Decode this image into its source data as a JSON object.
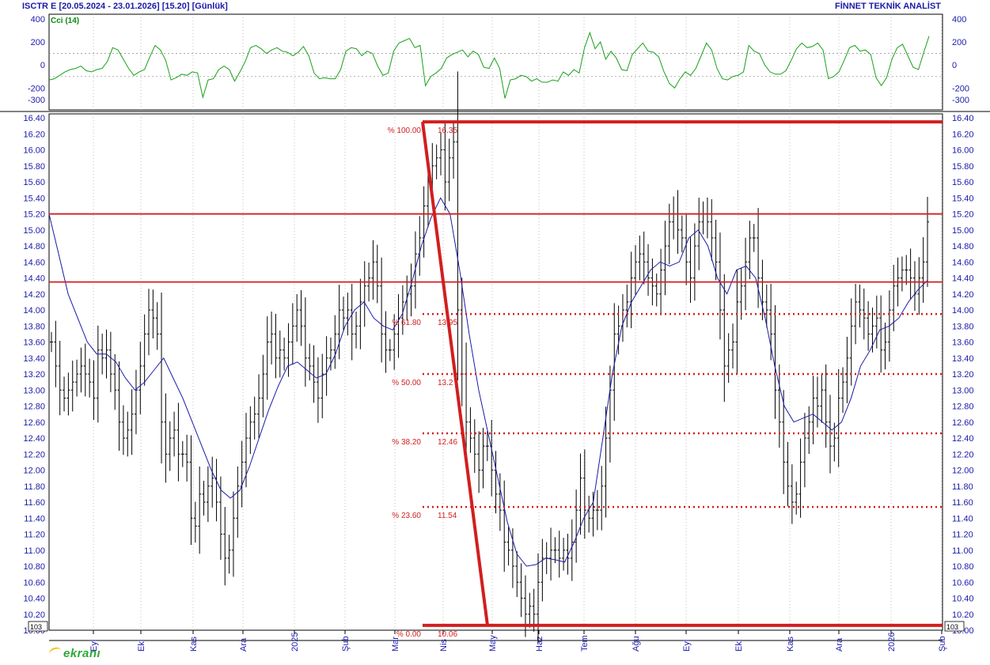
{
  "header": {
    "left_title": "ISCTR E  [20.05.2024 - 23.01.2026]  [15.20]  [Günlük]",
    "right_title": "FİNNET TEKNİK ANALİST"
  },
  "indicator_label": "Cci (14)",
  "axis_badge": "10^3",
  "logo_text": "ekranı",
  "colors": {
    "axis_text": "#1a1aa8",
    "price_bars": "#000000",
    "moving_average": "#1a1aa8",
    "cci_line": "#19a019",
    "fib_lines": "#d21e1e",
    "grid": "#9a9a9a"
  },
  "chart_data": [
    {
      "type": "line",
      "panel": "cci",
      "y_ticks": [
        400,
        200,
        0,
        -200,
        -300
      ],
      "ylim": [
        -390,
        440
      ],
      "reference_lines": [
        100,
        -100
      ],
      "series": [
        {
          "name": "Cci (14)",
          "values": [
            -130,
            -120,
            -90,
            -60,
            -40,
            -30,
            -10,
            -50,
            -60,
            -40,
            -30,
            30,
            150,
            130,
            50,
            -30,
            -90,
            -60,
            -40,
            70,
            170,
            130,
            40,
            -130,
            -110,
            -80,
            -90,
            -60,
            -70,
            -280,
            -130,
            -120,
            -40,
            -10,
            -40,
            -140,
            -60,
            30,
            150,
            170,
            140,
            100,
            130,
            150,
            120,
            110,
            80,
            110,
            160,
            80,
            -70,
            -120,
            -110,
            -120,
            -120,
            -40,
            120,
            150,
            140,
            80,
            120,
            100,
            -10,
            -90,
            -70,
            120,
            190,
            210,
            230,
            150,
            170,
            -180,
            -100,
            -70,
            -30,
            60,
            90,
            110,
            130,
            70,
            120,
            90,
            -20,
            -30,
            60,
            -30,
            -290,
            -130,
            -120,
            -90,
            -100,
            -140,
            -120,
            -150,
            -150,
            -130,
            -140,
            -60,
            -90,
            -40,
            -70,
            150,
            280,
            140,
            200,
            50,
            120,
            60,
            -40,
            -50,
            90,
            140,
            190,
            120,
            110,
            70,
            -60,
            -160,
            -200,
            -120,
            -60,
            -90,
            -30,
            80,
            190,
            130,
            -30,
            -120,
            -130,
            -100,
            -90,
            -60,
            170,
            120,
            100,
            0,
            -60,
            -80,
            -80,
            -50,
            40,
            140,
            190,
            150,
            160,
            190,
            130,
            -120,
            -100,
            -60,
            40,
            150,
            170,
            120,
            130,
            90,
            -110,
            -180,
            -110,
            50,
            150,
            180,
            80,
            -20,
            -40,
            110,
            250
          ]
        }
      ]
    },
    {
      "type": "bar",
      "subtype": "ohlc",
      "panel": "price",
      "x_tick_labels": [
        "Eyl",
        "Eki",
        "Kas",
        "Ara",
        "2025",
        "Şub",
        "Mar",
        "Nis",
        "May",
        "Haz",
        "Tem",
        "Ağu",
        "Eyl",
        "Eki",
        "Kas",
        "Ara",
        "2026",
        "Şub"
      ],
      "y_ticks": [
        16.4,
        16.2,
        16.0,
        15.8,
        15.6,
        15.4,
        15.2,
        15.0,
        14.8,
        14.6,
        14.4,
        14.2,
        14.0,
        13.8,
        13.6,
        13.4,
        13.2,
        13.0,
        12.8,
        12.6,
        12.4,
        12.2,
        12.0,
        11.8,
        11.6,
        11.4,
        11.2,
        11.0,
        10.8,
        10.6,
        10.4,
        10.2,
        10.0
      ],
      "ylim": [
        10.0,
        16.45
      ],
      "last_price": 15.2,
      "series": [
        {
          "name": "price",
          "values": [
            13.6,
            13.3,
            13.0,
            12.9,
            13.0,
            13.1,
            13.2,
            13.3,
            13.2,
            13.1,
            12.9,
            13.5,
            13.4,
            13.5,
            13.2,
            13.0,
            12.6,
            12.4,
            12.5,
            12.7,
            13.0,
            13.3,
            13.7,
            14.0,
            13.9,
            13.7,
            12.6,
            12.2,
            12.4,
            12.5,
            12.2,
            12.2,
            12.1,
            11.4,
            11.3,
            11.7,
            11.6,
            11.8,
            11.9,
            11.6,
            11.2,
            10.9,
            11.0,
            11.4,
            11.8,
            12.1,
            12.4,
            12.6,
            12.7,
            12.9,
            13.2,
            13.6,
            13.7,
            13.4,
            13.5,
            13.4,
            13.6,
            13.8,
            14.0,
            13.8,
            13.4,
            13.3,
            13.1,
            12.9,
            13.2,
            13.4,
            13.5,
            13.7,
            14.0,
            13.9,
            14.0,
            13.7,
            13.8,
            14.1,
            14.3,
            14.4,
            14.6,
            14.3,
            13.7,
            13.5,
            13.5,
            13.7,
            13.9,
            14.1,
            14.2,
            14.3,
            14.7,
            14.9,
            15.3,
            15.6,
            15.8,
            15.9,
            16.0,
            15.6,
            15.9,
            16.1,
            14.0,
            13.2,
            12.6,
            12.4,
            12.2,
            12.0,
            12.3,
            12.3,
            12.0,
            11.7,
            11.5,
            11.1,
            11.0,
            10.8,
            10.6,
            10.4,
            10.2,
            10.3,
            10.2,
            10.6,
            10.9,
            10.9,
            11.0,
            11.0,
            10.9,
            11.0,
            10.9,
            11.1,
            11.5,
            11.9,
            11.5,
            11.4,
            11.5,
            11.5,
            11.8,
            12.4,
            13.0,
            13.7,
            13.8,
            14.0,
            14.1,
            14.4,
            14.6,
            14.7,
            14.6,
            14.4,
            14.3,
            14.2,
            14.5,
            14.8,
            15.1,
            15.2,
            15.0,
            14.9,
            14.6,
            14.4,
            14.8,
            15.1,
            15.2,
            15.1,
            14.9,
            14.6,
            14.0,
            13.3,
            13.5,
            13.6,
            14.1,
            14.3,
            14.6,
            14.9,
            14.9,
            14.4,
            14.1,
            14.0,
            13.7,
            13.0,
            12.6,
            12.1,
            11.8,
            11.6,
            11.7,
            12.1,
            12.4,
            12.6,
            12.9,
            12.8,
            13.0,
            12.6,
            12.3,
            12.4,
            12.9,
            13.1,
            13.4,
            13.8,
            14.1,
            14.0,
            13.9,
            13.7,
            13.8,
            13.9,
            13.5,
            13.6,
            14.0,
            14.3,
            14.4,
            14.5,
            14.5,
            14.4,
            14.2,
            14.4,
            14.6,
            15.1
          ]
        },
        {
          "name": "moving average",
          "values": [
            15.2,
            14.7,
            14.2,
            13.9,
            13.6,
            13.45,
            13.45,
            13.35,
            13.15,
            13.0,
            13.1,
            13.25,
            13.4,
            13.15,
            12.9,
            12.6,
            12.3,
            12.0,
            11.75,
            11.65,
            11.75,
            12.05,
            12.4,
            12.75,
            13.05,
            13.3,
            13.35,
            13.25,
            13.15,
            13.2,
            13.45,
            13.8,
            14.0,
            14.1,
            13.9,
            13.8,
            13.75,
            13.95,
            14.35,
            14.8,
            15.15,
            15.4,
            15.2,
            14.5,
            13.7,
            13.0,
            12.45,
            11.9,
            11.35,
            10.95,
            10.8,
            10.82,
            10.9,
            10.88,
            10.85,
            11.1,
            11.4,
            11.6,
            12.4,
            13.2,
            13.8,
            14.1,
            14.3,
            14.5,
            14.6,
            14.55,
            14.6,
            14.9,
            15.0,
            14.8,
            14.4,
            14.2,
            14.5,
            14.55,
            14.4,
            13.9,
            13.3,
            12.8,
            12.6,
            12.65,
            12.7,
            12.6,
            12.5,
            12.6,
            12.9,
            13.3,
            13.5,
            13.75,
            13.8,
            13.9,
            14.1,
            14.25,
            14.37
          ]
        }
      ],
      "fibonacci": {
        "levels": [
          {
            "pct": "% 100.00",
            "value": "16.35"
          },
          {
            "pct": "% 61.80",
            "value": "13.95"
          },
          {
            "pct": "% 50.00",
            "value": "13.2"
          },
          {
            "pct": "% 38.20",
            "value": "12.46"
          },
          {
            "pct": "% 23.60",
            "value": "11.54"
          },
          {
            "pct": "% 0.00",
            "value": "10.06"
          }
        ],
        "swing_high": 16.35,
        "swing_low": 10.06
      },
      "horizontal_lines": [
        15.2,
        14.35
      ]
    }
  ]
}
